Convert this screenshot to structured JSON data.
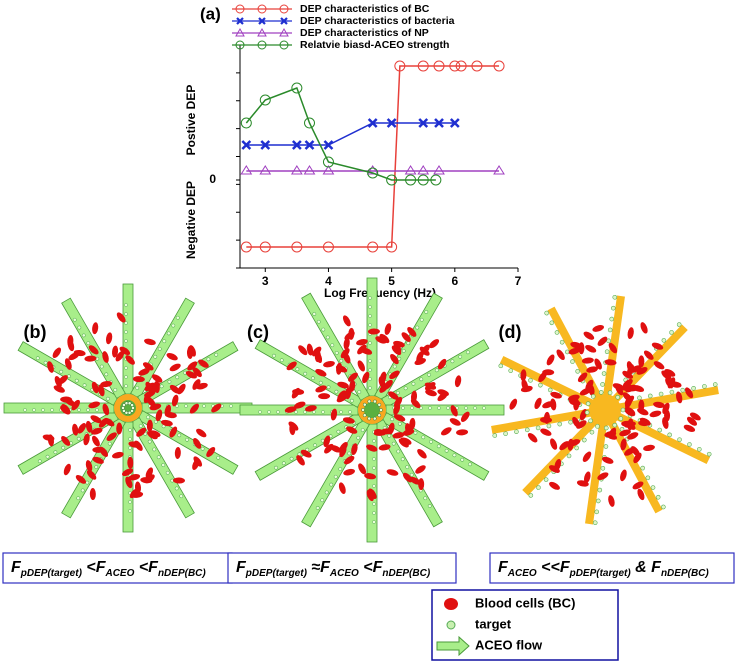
{
  "chart_data": {
    "type": "line",
    "title": "(a)",
    "x_label": "Log Frequency (Hz)",
    "y_label_top": "Postive DEP",
    "y_label_bottom": "Negative DEP",
    "xlim": [
      2.6,
      7
    ],
    "xticks": [
      3,
      4,
      5,
      6,
      7
    ],
    "ylim": [
      -0.88,
      1.35
    ],
    "yticks": [
      0
    ],
    "series": [
      {
        "name": "DEP characteristics of BC",
        "color": "#e8403a",
        "marker": "circle",
        "x": [
          2.7,
          3.0,
          3.5,
          4.0,
          4.7,
          5.0,
          5.13,
          5.5,
          5.75,
          6.0,
          6.1,
          6.35,
          6.7
        ],
        "values": [
          -0.67,
          -0.67,
          -0.67,
          -0.67,
          -0.67,
          -0.67,
          1.14,
          1.14,
          1.14,
          1.14,
          1.14,
          1.14,
          1.14
        ]
      },
      {
        "name": "DEP characteristics of bacteria",
        "color": "#1f2fd0",
        "marker": "x",
        "x": [
          2.7,
          3.0,
          3.5,
          3.7,
          4.0,
          4.7,
          5.0,
          5.5,
          5.75,
          6.0
        ],
        "values": [
          0.35,
          0.35,
          0.35,
          0.35,
          0.35,
          0.57,
          0.57,
          0.57,
          0.57,
          0.57
        ]
      },
      {
        "name": "DEP characteristics of NP",
        "color": "#a040c0",
        "marker": "triangle",
        "x": [
          2.7,
          3.0,
          3.5,
          3.7,
          4.0,
          4.7,
          5.3,
          5.5,
          5.75,
          6.7
        ],
        "values": [
          0.09,
          0.09,
          0.09,
          0.09,
          0.09,
          0.09,
          0.09,
          0.09,
          0.09,
          0.09
        ]
      },
      {
        "name": "Relatvie biasd-ACEO strength",
        "color": "#2a8a2a",
        "marker": "circle",
        "x": [
          2.7,
          3.0,
          3.5,
          3.7,
          4.0,
          4.7,
          5.0,
          5.3,
          5.5,
          5.7
        ],
        "values": [
          0.57,
          0.8,
          0.92,
          0.57,
          0.18,
          0.07,
          0,
          0,
          0,
          0
        ]
      }
    ]
  },
  "panels": [
    {
      "label": "(b)",
      "caption": [
        "F",
        "pDEP(target)",
        " <F",
        "ACEO",
        " <F",
        "nDEP(BC)"
      ]
    },
    {
      "label": "(c)",
      "caption": [
        "F",
        "pDEP(target)",
        " ≈F",
        "ACEO",
        " <F",
        "nDEP(BC)"
      ]
    },
    {
      "label": "(d)",
      "caption": [
        "F",
        "ACEO",
        " <<F",
        "pDEP(target)",
        " & F",
        "nDEP(BC)"
      ]
    }
  ],
  "legend": [
    "Blood cells (BC)",
    "target",
    "ACEO flow"
  ]
}
